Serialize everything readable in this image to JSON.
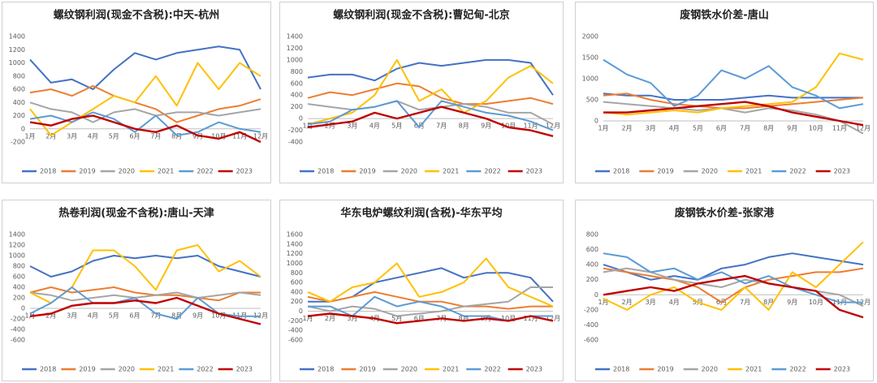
{
  "chart_data": [
    {
      "type": "line",
      "title": "螺纹钢利润(现金不含税):中天-杭州",
      "categories": [
        "1月",
        "2月",
        "3月",
        "4月",
        "5月",
        "6月",
        "7月",
        "8月",
        "9月",
        "10月",
        "11月",
        "12月"
      ],
      "ylim": [
        -200,
        1400
      ],
      "yticks": [
        -200,
        0,
        200,
        400,
        600,
        800,
        1000,
        1200,
        1400
      ],
      "grid": false,
      "legend": "bottom",
      "series": [
        {
          "name": "2018",
          "color": "#4472c4",
          "values": [
            1050,
            700,
            750,
            600,
            900,
            1150,
            1050,
            1150,
            1200,
            1250,
            1200,
            600
          ]
        },
        {
          "name": "2019",
          "color": "#ed7d31",
          "values": [
            550,
            600,
            500,
            650,
            500,
            400,
            300,
            100,
            200,
            300,
            350,
            450
          ]
        },
        {
          "name": "2020",
          "color": "#a5a5a5",
          "values": [
            400,
            300,
            250,
            100,
            250,
            300,
            200,
            250,
            250,
            200,
            250,
            300
          ]
        },
        {
          "name": "2021",
          "color": "#ffc000",
          "values": [
            300,
            -100,
            100,
            300,
            500,
            400,
            800,
            350,
            1000,
            600,
            1000,
            800
          ]
        },
        {
          "name": "2022",
          "color": "#5b9bd5",
          "values": [
            150,
            200,
            100,
            250,
            150,
            -50,
            200,
            -100,
            -50,
            100,
            0,
            -50
          ]
        },
        {
          "name": "2023",
          "color": "#c00000",
          "values": [
            100,
            50,
            150,
            200,
            100,
            0,
            -50,
            50,
            -100,
            -150,
            -50,
            -200
          ]
        }
      ]
    },
    {
      "type": "line",
      "title": "螺纹钢利润(现金不含税):曹妃甸-北京",
      "categories": [
        "1月",
        "2月",
        "3月",
        "4月",
        "5月",
        "6月",
        "7月",
        "8月",
        "9月",
        "10月",
        "11月",
        "12月"
      ],
      "ylim": [
        -400,
        1400
      ],
      "yticks": [
        -400,
        -200,
        0,
        200,
        400,
        600,
        800,
        1000,
        1200,
        1400
      ],
      "grid": false,
      "legend": "bottom",
      "series": [
        {
          "name": "2018",
          "color": "#4472c4",
          "values": [
            700,
            750,
            750,
            650,
            850,
            950,
            900,
            950,
            1000,
            1000,
            950,
            400
          ]
        },
        {
          "name": "2019",
          "color": "#ed7d31",
          "values": [
            350,
            450,
            400,
            500,
            600,
            550,
            350,
            250,
            250,
            300,
            350,
            250
          ]
        },
        {
          "name": "2020",
          "color": "#a5a5a5",
          "values": [
            250,
            200,
            150,
            200,
            300,
            150,
            200,
            250,
            200,
            100,
            100,
            -100
          ]
        },
        {
          "name": "2021",
          "color": "#ffc000",
          "values": [
            -100,
            0,
            100,
            400,
            1000,
            300,
            500,
            100,
            300,
            700,
            900,
            600
          ]
        },
        {
          "name": "2022",
          "color": "#5b9bd5",
          "values": [
            -100,
            -50,
            150,
            200,
            300,
            -150,
            300,
            200,
            100,
            50,
            -50,
            -200
          ]
        },
        {
          "name": "2023",
          "color": "#c00000",
          "values": [
            -150,
            -100,
            -50,
            100,
            0,
            100,
            200,
            100,
            0,
            -150,
            -200,
            -300
          ]
        }
      ]
    },
    {
      "type": "line",
      "title": "废钢铁水价差-唐山",
      "categories": [
        "1月",
        "2月",
        "3月",
        "4月",
        "5月",
        "6月",
        "7月",
        "8月",
        "9月",
        "10月",
        "11月",
        "12月"
      ],
      "ylim": [
        -500,
        2000
      ],
      "yticks": [
        0,
        500,
        1000,
        1500,
        2000
      ],
      "grid": false,
      "legend": "bottom",
      "series": [
        {
          "name": "2018",
          "color": "#4472c4",
          "values": [
            650,
            600,
            600,
            500,
            500,
            500,
            550,
            600,
            550,
            550,
            550,
            550
          ]
        },
        {
          "name": "2019",
          "color": "#ed7d31",
          "values": [
            600,
            650,
            500,
            400,
            350,
            300,
            300,
            350,
            400,
            450,
            500,
            550
          ]
        },
        {
          "name": "2020",
          "color": "#a5a5a5",
          "values": [
            450,
            400,
            350,
            300,
            250,
            300,
            200,
            300,
            250,
            150,
            0,
            -300
          ]
        },
        {
          "name": "2021",
          "color": "#ffc000",
          "values": [
            200,
            150,
            200,
            250,
            200,
            300,
            350,
            400,
            450,
            800,
            1600,
            1450
          ]
        },
        {
          "name": "2022",
          "color": "#5b9bd5",
          "values": [
            1450,
            1100,
            900,
            350,
            600,
            1200,
            1000,
            1300,
            800,
            600,
            300,
            400
          ]
        },
        {
          "name": "2023",
          "color": "#c00000",
          "values": [
            200,
            200,
            250,
            300,
            350,
            400,
            450,
            350,
            200,
            100,
            0,
            -100
          ]
        }
      ]
    },
    {
      "type": "line",
      "title": "热卷利润(现金不含税):唐山-天津",
      "categories": [
        "1月",
        "2月",
        "3月",
        "4月",
        "5月",
        "6月",
        "7月",
        "8月",
        "9月",
        "10月",
        "11月",
        "12月"
      ],
      "ylim": [
        -600,
        1400
      ],
      "yticks": [
        -600,
        -400,
        -200,
        0,
        200,
        400,
        600,
        800,
        1000,
        1200,
        1400
      ],
      "grid": false,
      "legend": "bottom",
      "series": [
        {
          "name": "2018",
          "color": "#4472c4",
          "values": [
            800,
            600,
            700,
            900,
            1000,
            950,
            1000,
            950,
            1000,
            800,
            700,
            600
          ]
        },
        {
          "name": "2019",
          "color": "#ed7d31",
          "values": [
            300,
            400,
            300,
            350,
            400,
            300,
            250,
            250,
            200,
            150,
            300,
            300
          ]
        },
        {
          "name": "2020",
          "color": "#a5a5a5",
          "values": [
            300,
            250,
            150,
            200,
            250,
            200,
            250,
            300,
            200,
            250,
            300,
            250
          ]
        },
        {
          "name": "2021",
          "color": "#ffc000",
          "values": [
            300,
            100,
            400,
            1100,
            1100,
            800,
            350,
            1100,
            1200,
            700,
            900,
            600
          ]
        },
        {
          "name": "2022",
          "color": "#5b9bd5",
          "values": [
            -100,
            100,
            400,
            100,
            100,
            200,
            -100,
            -200,
            200,
            -100,
            -150,
            -150
          ]
        },
        {
          "name": "2023",
          "color": "#c00000",
          "values": [
            -150,
            -100,
            50,
            100,
            100,
            150,
            100,
            200,
            50,
            -100,
            -200,
            -300
          ]
        }
      ]
    },
    {
      "type": "line",
      "title": "华东电炉螺纹利润(含税)-华东平均",
      "categories": [
        "1月",
        "2月",
        "3月",
        "4月",
        "5月",
        "6月",
        "7月",
        "8月",
        "9月",
        "10月",
        "11月",
        "12月"
      ],
      "ylim": [
        -600,
        1600
      ],
      "yticks": [
        -600,
        -400,
        -200,
        0,
        200,
        400,
        600,
        800,
        1000,
        1200,
        1400,
        1600
      ],
      "grid": false,
      "legend": "bottom",
      "series": [
        {
          "name": "2018",
          "color": "#4472c4",
          "values": [
            200,
            200,
            300,
            600,
            700,
            800,
            900,
            700,
            800,
            800,
            700,
            200
          ]
        },
        {
          "name": "2019",
          "color": "#ed7d31",
          "values": [
            300,
            200,
            300,
            400,
            300,
            200,
            200,
            100,
            100,
            50,
            100,
            100
          ]
        },
        {
          "name": "2020",
          "color": "#a5a5a5",
          "values": [
            100,
            0,
            100,
            50,
            -100,
            -50,
            0,
            100,
            150,
            200,
            500,
            500
          ]
        },
        {
          "name": "2021",
          "color": "#ffc000",
          "values": [
            400,
            200,
            500,
            600,
            1000,
            300,
            400,
            600,
            1100,
            500,
            300,
            100
          ]
        },
        {
          "name": "2022",
          "color": "#5b9bd5",
          "values": [
            100,
            100,
            -100,
            300,
            100,
            200,
            100,
            -100,
            -100,
            -200,
            -100,
            -100
          ]
        },
        {
          "name": "2023",
          "color": "#c00000",
          "values": [
            -100,
            -50,
            -100,
            -150,
            -250,
            -200,
            -150,
            -200,
            -150,
            -200,
            -100,
            -200
          ]
        }
      ]
    },
    {
      "type": "line",
      "title": "废钢铁水价差-张家港",
      "categories": [
        "1月",
        "2月",
        "3月",
        "4月",
        "5月",
        "6月",
        "7月",
        "8月",
        "9月",
        "10月",
        "11月",
        "12月"
      ],
      "ylim": [
        -600,
        800
      ],
      "yticks": [
        -600,
        -400,
        -200,
        0,
        200,
        400,
        600,
        800
      ],
      "grid": false,
      "legend": "bottom",
      "series": [
        {
          "name": "2018",
          "color": "#4472c4",
          "values": [
            400,
            300,
            200,
            250,
            200,
            350,
            400,
            500,
            550,
            500,
            450,
            400
          ]
        },
        {
          "name": "2019",
          "color": "#ed7d31",
          "values": [
            350,
            300,
            250,
            200,
            100,
            -100,
            100,
            200,
            250,
            300,
            300,
            350
          ]
        },
        {
          "name": "2020",
          "color": "#a5a5a5",
          "values": [
            300,
            350,
            300,
            200,
            150,
            100,
            200,
            150,
            100,
            50,
            0,
            -150
          ]
        },
        {
          "name": "2021",
          "color": "#ffc000",
          "values": [
            -50,
            -200,
            0,
            100,
            -100,
            -200,
            100,
            -200,
            300,
            100,
            400,
            700
          ]
        },
        {
          "name": "2022",
          "color": "#5b9bd5",
          "values": [
            550,
            500,
            300,
            350,
            200,
            300,
            150,
            250,
            100,
            0,
            -100,
            -100
          ]
        },
        {
          "name": "2023",
          "color": "#c00000",
          "values": [
            0,
            50,
            100,
            50,
            150,
            200,
            250,
            150,
            100,
            50,
            -200,
            -300
          ]
        }
      ]
    }
  ]
}
